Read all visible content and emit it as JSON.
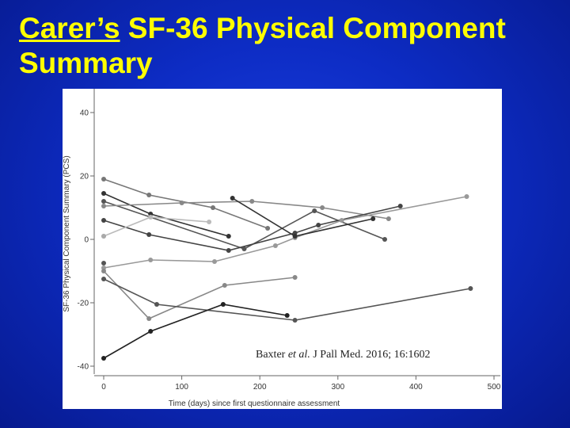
{
  "slide": {
    "title_part1": "Carer’s",
    "title_part2": " SF-36 Physical Component",
    "title_line2": "Summary"
  },
  "colors": {
    "background": "#0d2cc4",
    "title": "#ffff00",
    "panel": "#ffffff"
  },
  "chart_data": {
    "type": "line",
    "title": "",
    "xlabel": "Time (days) since first questionnaire assessment",
    "ylabel": "SF-36 Physical Component Summary (PCS)",
    "xlim": [
      0,
      500
    ],
    "ylim": [
      -40,
      40
    ],
    "xticks": [
      0,
      100,
      200,
      300,
      400,
      500
    ],
    "yticks": [
      -40,
      -20,
      0,
      20,
      40
    ],
    "grid": false,
    "legend": "none",
    "annotation": {
      "before": "Baxter ",
      "italic": "et al.",
      "after": " J Pall Med. 2016; 16:1602"
    },
    "series": [
      {
        "color": "#777777",
        "points": [
          [
            0,
            19
          ],
          [
            58,
            14
          ],
          [
            140,
            10
          ],
          [
            210,
            3.5
          ]
        ]
      },
      {
        "color": "#333333",
        "points": [
          [
            0,
            14.5
          ],
          [
            60,
            8
          ],
          [
            160,
            1
          ]
        ]
      },
      {
        "color": "#555555",
        "points": [
          [
            0,
            12
          ],
          [
            180,
            -3
          ],
          [
            270,
            9
          ],
          [
            360,
            0
          ]
        ]
      },
      {
        "color": "#888888",
        "points": [
          [
            0,
            10.5
          ],
          [
            100,
            11.5
          ],
          [
            190,
            12
          ],
          [
            280,
            10
          ],
          [
            365,
            6.5
          ]
        ]
      },
      {
        "color": "#444444",
        "points": [
          [
            0,
            6
          ],
          [
            58,
            1.5
          ],
          [
            160,
            -3.5
          ],
          [
            245,
            2
          ],
          [
            275,
            4.5
          ],
          [
            380,
            10.5
          ]
        ]
      },
      {
        "color": "#bbbbbb",
        "points": [
          [
            0,
            1
          ],
          [
            60,
            7
          ],
          [
            135,
            5.5
          ]
        ]
      },
      {
        "color": "#aaaaaa",
        "points": [
          [
            0,
            1
          ]
        ]
      },
      {
        "color": "#999999",
        "points": [
          [
            0,
            -9
          ],
          [
            60,
            -6.5
          ],
          [
            142,
            -7
          ],
          [
            220,
            -2
          ],
          [
            245,
            0.5
          ],
          [
            305,
            6
          ],
          [
            465,
            13.5
          ]
        ]
      },
      {
        "color": "#555555",
        "points": [
          [
            0,
            -7.5
          ]
        ]
      },
      {
        "color": "#888888",
        "points": [
          [
            0,
            -10
          ],
          [
            58,
            -25
          ],
          [
            155,
            -14.5
          ],
          [
            245,
            -12
          ]
        ]
      },
      {
        "color": "#555555",
        "points": [
          [
            0,
            -12.5
          ],
          [
            68,
            -20.5
          ],
          [
            245,
            -25.5
          ],
          [
            470,
            -15.5
          ]
        ]
      },
      {
        "color": "#222222",
        "points": [
          [
            0,
            -37.5
          ],
          [
            60,
            -29
          ],
          [
            153,
            -20.5
          ],
          [
            235,
            -24
          ]
        ]
      },
      {
        "color": "#333333",
        "points": [
          [
            165,
            13
          ],
          [
            245,
            1
          ],
          [
            345,
            6.5
          ]
        ]
      }
    ]
  }
}
